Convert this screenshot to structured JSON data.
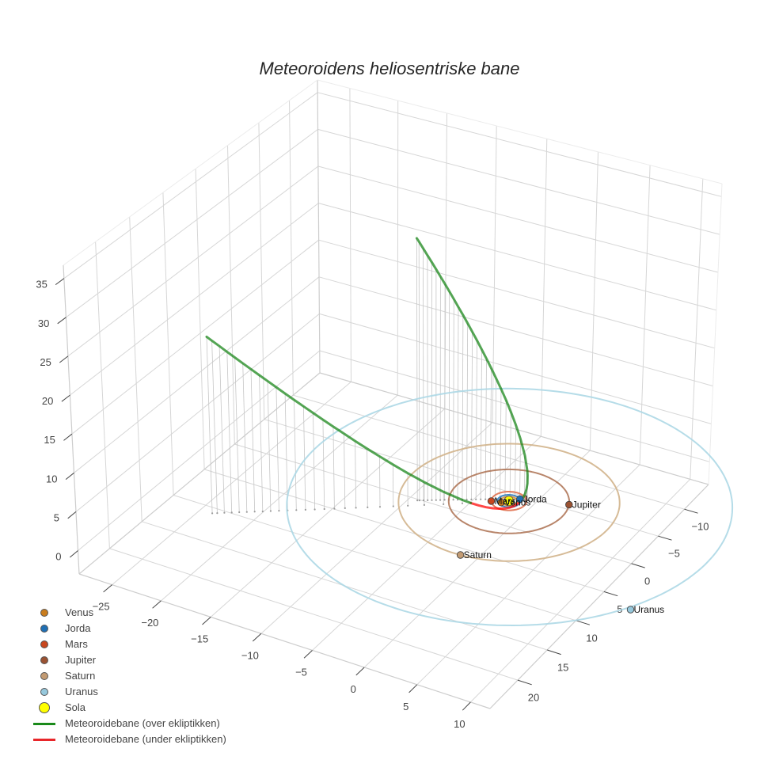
{
  "title": "Meteoroidens heliosentriske bane",
  "legend": {
    "items": [
      {
        "label": "Venus",
        "symbol": "marker",
        "color": "#c97d1e"
      },
      {
        "label": "Jorda",
        "symbol": "marker",
        "color": "#1f6fb4"
      },
      {
        "label": "Mars",
        "symbol": "marker",
        "color": "#c8461e"
      },
      {
        "label": "Jupiter",
        "symbol": "marker",
        "color": "#9a5232"
      },
      {
        "label": "Saturn",
        "symbol": "marker",
        "color": "#c39b73"
      },
      {
        "label": "Uranus",
        "symbol": "marker",
        "color": "#96c8dc"
      },
      {
        "label": "Sola",
        "symbol": "marker-large",
        "color": "#ffff00"
      },
      {
        "label": "Meteoroidebane (over ekliptikken)",
        "symbol": "line",
        "color": "#1a8a1a"
      },
      {
        "label": "Meteoroidebane (under ekliptikken)",
        "symbol": "line",
        "color": "#e8262a"
      }
    ]
  },
  "chart_data": {
    "type": "scatter3d",
    "title": "Meteoroidens heliosentriske bane",
    "xlabel": "",
    "ylabel": "",
    "zlabel": "",
    "grid": true,
    "legend_position": "bottom-left",
    "axes": {
      "x": {
        "range": [
          -28.4,
          11.8
        ],
        "tickvals": [
          -25,
          -20,
          -15,
          -10,
          -5,
          0,
          5,
          10
        ],
        "ticktext": [
          "−25",
          "−20",
          "−15",
          "−10",
          "−5",
          "0",
          "5",
          "10"
        ]
      },
      "y": {
        "range": [
          -14.7,
          24.6
        ],
        "tickvals": [
          -10,
          -5,
          0,
          5,
          10,
          15,
          20
        ],
        "ticktext": [
          "−10",
          "−5",
          "0",
          "5",
          "10",
          "15",
          "20"
        ]
      },
      "z": {
        "range": [
          -3,
          36.7
        ],
        "tickvals": [
          0,
          5,
          10,
          15,
          20,
          25,
          30,
          35
        ],
        "ticktext": [
          "0",
          "5",
          "10",
          "15",
          "20",
          "25",
          "30",
          "35"
        ]
      }
    },
    "sun": {
      "name": "Sola",
      "x": 0,
      "y": 0,
      "z": 0,
      "color": "#ffff00"
    },
    "planets": [
      {
        "name": "Venus",
        "orbit_radius": 0.72,
        "x": -0.46,
        "y": 0.55,
        "z": 0,
        "color": "#c97d1e",
        "orbit_color": "#d8943e"
      },
      {
        "name": "Jorda",
        "orbit_radius": 1.0,
        "x": 0.68,
        "y": -0.73,
        "z": 0,
        "color": "#1f6fb4",
        "orbit_color": "#2f7fc0"
      },
      {
        "name": "Mars",
        "orbit_radius": 1.52,
        "x": -1.32,
        "y": 0.76,
        "z": 0,
        "color": "#c8461e",
        "orbit_color": "#e0714f"
      },
      {
        "name": "Jupiter",
        "orbit_radius": 5.2,
        "x": 4.8,
        "y": -2.02,
        "z": 0,
        "color": "#9a5232",
        "orbit_color": "#b0785a"
      },
      {
        "name": "Saturn",
        "orbit_radius": 9.54,
        "x": 0.61,
        "y": 9.52,
        "z": 0,
        "color": "#c39b73",
        "orbit_color": "#d2b48c"
      },
      {
        "name": "Uranus",
        "orbit_radius": 19.2,
        "x": 16.9,
        "y": 9.8,
        "z": 0,
        "color": "#96c8dc",
        "orbit_color": "#add8e6"
      }
    ],
    "meteoroid": {
      "drop_lines_to_ecliptic": true,
      "above_ecliptic": {
        "name": "Meteoroidebane (over ekliptikken)",
        "color": "#128212",
        "segments": [
          [
            [
              -21.28,
              14.32,
              22.91
            ],
            [
              -20.92,
              14.08,
              22.38
            ],
            [
              -20.41,
              13.73,
              21.63
            ],
            [
              -19.88,
              13.39,
              20.87
            ],
            [
              -19.34,
              13.03,
              20.09
            ],
            [
              -18.79,
              12.67,
              19.31
            ],
            [
              -18.23,
              12.29,
              18.51
            ],
            [
              -17.65,
              11.92,
              17.7
            ],
            [
              -17.08,
              11.53,
              16.89
            ],
            [
              -16.48,
              11.13,
              16.05
            ],
            [
              -15.86,
              10.72,
              15.19
            ],
            [
              -15.23,
              10.31,
              14.33
            ],
            [
              -14.57,
              9.87,
              13.44
            ],
            [
              -13.9,
              9.43,
              12.54
            ],
            [
              -13.21,
              8.97,
              11.62
            ],
            [
              -12.49,
              8.49,
              10.67
            ],
            [
              -11.73,
              7.98,
              9.69
            ],
            [
              -10.94,
              7.46,
              8.69
            ],
            [
              -10.1,
              6.9,
              7.64
            ],
            [
              -9.21,
              6.3,
              6.56
            ],
            [
              -8.26,
              5.66,
              5.43
            ],
            [
              -7.21,
              4.96,
              4.23
            ],
            [
              -6.03,
              4.17,
              2.97
            ],
            [
              -4.65,
              3.24,
              1.61
            ],
            [
              -3.31,
              2.32,
              0.45
            ],
            [
              -2.88,
              2.03,
              0.13
            ],
            [
              -2.7,
              1.91,
              0.0
            ]
          ],
          [
            [
              0.88,
              -0.62,
              0.0
            ],
            [
              1.03,
              -0.74,
              0.41
            ],
            [
              1.13,
              -0.83,
              0.82
            ],
            [
              1.22,
              -0.91,
              1.42
            ],
            [
              1.27,
              -0.96,
              2.11
            ],
            [
              1.26,
              -0.99,
              3.13
            ],
            [
              1.23,
              -0.99,
              3.74
            ],
            [
              1.02,
              -0.9,
              5.72
            ],
            [
              0.67,
              -0.72,
              7.84
            ],
            [
              0.31,
              -0.52,
              9.68
            ],
            [
              -0.07,
              -0.31,
              11.36
            ],
            [
              -0.44,
              -0.1,
              12.91
            ],
            [
              -0.81,
              0.12,
              14.37
            ],
            [
              -1.18,
              0.34,
              15.76
            ],
            [
              -1.54,
              0.55,
              17.08
            ],
            [
              -1.9,
              0.76,
              18.34
            ],
            [
              -2.25,
              0.97,
              19.56
            ],
            [
              -2.6,
              1.18,
              20.74
            ],
            [
              -2.94,
              1.39,
              21.87
            ],
            [
              -3.28,
              1.59,
              22.99
            ],
            [
              -3.62,
              1.79,
              24.07
            ],
            [
              -3.95,
              2.0,
              25.13
            ],
            [
              -4.28,
              2.19,
              26.17
            ],
            [
              -4.6,
              2.39,
              27.17
            ],
            [
              -4.92,
              2.58,
              28.16
            ],
            [
              -5.24,
              2.78,
              29.14
            ],
            [
              -5.55,
              2.97,
              30.09
            ],
            [
              -5.86,
              3.16,
              31.03
            ],
            [
              -6.17,
              3.35,
              31.95
            ],
            [
              -6.47,
              3.54,
              32.86
            ],
            [
              -6.77,
              3.72,
              33.75
            ],
            [
              -6.93,
              3.81,
              34.19
            ]
          ]
        ]
      },
      "below_ecliptic": {
        "name": "Meteoroidebane (under ekliptikken)",
        "color": "#ff0000",
        "segments": [
          [
            [
              -2.7,
              1.91,
              0.0
            ],
            [
              -2.13,
              1.52,
              -0.36
            ],
            [
              -1.61,
              1.16,
              -0.64
            ],
            [
              -1.13,
              0.83,
              -0.82
            ],
            [
              -0.7,
              0.52,
              -0.92
            ],
            [
              -0.31,
              0.25,
              -0.93
            ],
            [
              0.04,
              0.0,
              -0.86
            ],
            [
              0.35,
              -0.22,
              -0.7
            ],
            [
              0.61,
              -0.42,
              -0.45
            ],
            [
              0.88,
              -0.62,
              0.0
            ]
          ]
        ]
      }
    }
  }
}
